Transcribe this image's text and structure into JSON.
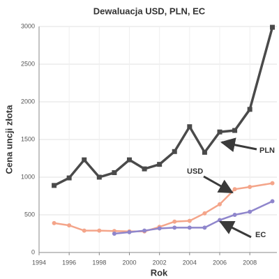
{
  "chart_data": {
    "type": "line",
    "title": "Dewaluacja USD, PLN, EC",
    "x_label": "Rok",
    "y_label": "Cena uncji złota",
    "annotations": [
      "PLN",
      "USD",
      "EC"
    ],
    "xlim": [
      1994,
      2009.8
    ],
    "xticks": [
      1994,
      1996,
      1998,
      2000,
      2002,
      2004,
      2006,
      2008
    ],
    "ylim": [
      0,
      3000
    ],
    "yticks": [
      0,
      500,
      1000,
      1500,
      2000,
      2500,
      3000
    ],
    "grid": true,
    "series": [
      {
        "name": "PLN",
        "color": "#4a4a4a",
        "marker": "square",
        "x": [
          1995,
          1996,
          1997,
          1998,
          1999,
          2000,
          2001,
          2002,
          2003,
          2004,
          2005,
          2006,
          2007,
          2008,
          2009.5
        ],
        "values": [
          890,
          990,
          1230,
          1000,
          1060,
          1230,
          1110,
          1170,
          1340,
          1670,
          1330,
          1600,
          1620,
          1900,
          2990
        ]
      },
      {
        "name": "USD",
        "color": "#f4a58a",
        "marker": "circle",
        "x": [
          1995,
          1996,
          1997,
          1998,
          1999,
          2000,
          2001,
          2002,
          2003,
          2004,
          2005,
          2006,
          2007,
          2008,
          2009.5
        ],
        "values": [
          390,
          360,
          290,
          290,
          285,
          280,
          280,
          340,
          410,
          420,
          520,
          640,
          840,
          870,
          920
        ]
      },
      {
        "name": "EC",
        "color": "#8f86cc",
        "marker": "circle",
        "x": [
          1999,
          2000,
          2001,
          2002,
          2003,
          2004,
          2005,
          2006,
          2007,
          2008,
          2009.5
        ],
        "values": [
          250,
          270,
          290,
          320,
          330,
          330,
          330,
          430,
          500,
          540,
          680
        ]
      }
    ]
  }
}
